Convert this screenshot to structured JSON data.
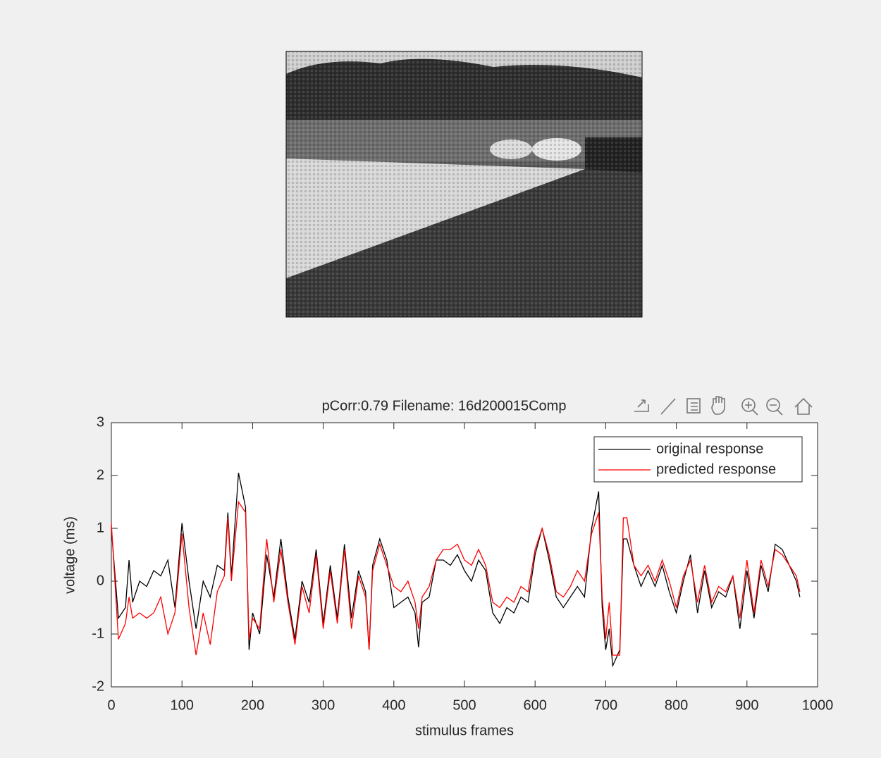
{
  "chart_data": {
    "type": "line",
    "title": "pCorr:0.79 Filename: 16d200015Comp",
    "x_label": "stimulus frames",
    "y_label": "voltage (ms)",
    "x": [
      0,
      10,
      20,
      25,
      30,
      40,
      50,
      60,
      70,
      80,
      90,
      100,
      110,
      120,
      130,
      140,
      150,
      160,
      165,
      170,
      180,
      190,
      195,
      200,
      210,
      220,
      230,
      240,
      250,
      260,
      270,
      280,
      290,
      300,
      310,
      320,
      330,
      340,
      350,
      360,
      365,
      370,
      380,
      390,
      400,
      410,
      420,
      430,
      435,
      440,
      450,
      460,
      470,
      480,
      490,
      500,
      510,
      520,
      530,
      540,
      550,
      560,
      570,
      580,
      590,
      600,
      610,
      620,
      630,
      640,
      650,
      660,
      670,
      680,
      690,
      695,
      700,
      705,
      710,
      720,
      725,
      730,
      740,
      750,
      760,
      770,
      780,
      790,
      800,
      810,
      820,
      830,
      840,
      850,
      860,
      870,
      880,
      890,
      900,
      910,
      920,
      930,
      940,
      950,
      960,
      970,
      975
    ],
    "series": [
      {
        "name": "original response",
        "color": "#000000",
        "values": [
          1.0,
          -0.7,
          -0.5,
          0.4,
          -0.4,
          0.0,
          -0.1,
          0.2,
          0.1,
          0.4,
          -0.5,
          1.1,
          0.0,
          -0.9,
          0.0,
          -0.3,
          0.3,
          0.2,
          1.3,
          0.1,
          2.05,
          1.4,
          -1.3,
          -0.6,
          -1.0,
          0.5,
          -0.3,
          0.8,
          -0.3,
          -1.1,
          0.0,
          -0.4,
          0.6,
          -0.8,
          0.3,
          -0.7,
          0.7,
          -0.7,
          0.2,
          -0.2,
          -1.3,
          0.3,
          0.8,
          0.4,
          -0.5,
          -0.4,
          -0.3,
          -0.6,
          -1.25,
          -0.4,
          -0.3,
          0.4,
          0.4,
          0.3,
          0.5,
          0.2,
          0.0,
          0.4,
          0.2,
          -0.6,
          -0.8,
          -0.5,
          -0.6,
          -0.3,
          -0.4,
          0.5,
          1.0,
          0.4,
          -0.3,
          -0.5,
          -0.3,
          -0.1,
          -0.3,
          1.0,
          1.7,
          -0.5,
          -1.3,
          -0.9,
          -1.6,
          -1.3,
          0.8,
          0.8,
          0.3,
          -0.1,
          0.2,
          -0.1,
          0.3,
          -0.2,
          -0.6,
          0.0,
          0.5,
          -0.6,
          0.2,
          -0.5,
          -0.2,
          -0.3,
          0.1,
          -0.9,
          0.2,
          -0.7,
          0.3,
          -0.2,
          0.7,
          0.6,
          0.3,
          0.0,
          -0.3
        ]
      },
      {
        "name": "predicted response",
        "color": "#ff0000",
        "values": [
          1.1,
          -1.1,
          -0.8,
          -0.3,
          -0.7,
          -0.6,
          -0.7,
          -0.6,
          -0.3,
          -1.0,
          -0.6,
          0.9,
          -0.5,
          -1.4,
          -0.6,
          -1.2,
          -0.2,
          0.1,
          1.2,
          0.0,
          1.5,
          1.3,
          -1.1,
          -0.7,
          -0.9,
          0.8,
          -0.4,
          0.6,
          -0.4,
          -1.2,
          -0.1,
          -0.6,
          0.5,
          -0.9,
          0.2,
          -0.8,
          0.6,
          -0.9,
          0.1,
          -0.3,
          -1.3,
          0.2,
          0.7,
          0.3,
          -0.1,
          -0.2,
          0.0,
          -0.4,
          -0.9,
          -0.3,
          -0.1,
          0.4,
          0.6,
          0.6,
          0.7,
          0.4,
          0.3,
          0.6,
          0.3,
          -0.4,
          -0.5,
          -0.3,
          -0.4,
          -0.1,
          -0.2,
          0.6,
          1.0,
          0.5,
          -0.2,
          -0.3,
          -0.1,
          0.2,
          0.0,
          0.9,
          1.3,
          -0.3,
          -1.1,
          -0.4,
          -1.4,
          -1.4,
          1.2,
          1.2,
          0.3,
          0.1,
          0.3,
          0.0,
          0.4,
          0.0,
          -0.5,
          0.1,
          0.4,
          -0.4,
          0.3,
          -0.4,
          -0.1,
          -0.2,
          0.1,
          -0.7,
          0.4,
          -0.6,
          0.4,
          -0.1,
          0.6,
          0.5,
          0.3,
          0.1,
          -0.2
        ]
      }
    ],
    "xlim": [
      0,
      1000
    ],
    "xticks": [
      0,
      100,
      200,
      300,
      400,
      500,
      600,
      700,
      800,
      900,
      1000
    ],
    "ylim": [
      -2,
      3
    ],
    "yticks": [
      -2,
      -1,
      0,
      1,
      2,
      3
    ],
    "grid": false,
    "legend": "northeast"
  }
}
